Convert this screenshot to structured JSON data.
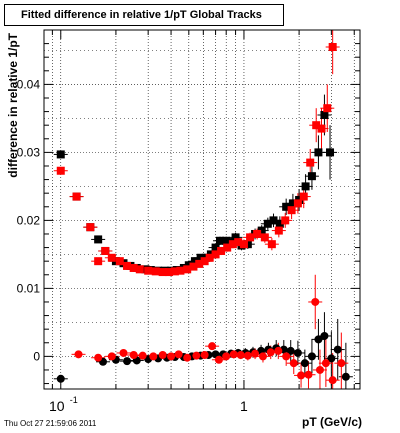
{
  "chart_data": {
    "type": "scatter",
    "title": "Fitted difference in relative 1/pT  Global Tracks",
    "xlabel": "pT (GeV/c)",
    "ylabel": "difference in relative 1/pT",
    "xscale": "log",
    "xlim": [
      0.081,
      4.3
    ],
    "ylim": [
      -0.0048,
      0.048
    ],
    "grid": true,
    "x_tick_labels": [
      {
        "value": 0.1,
        "label": "10",
        "exponent": "-1"
      },
      {
        "value": 1,
        "label": "1",
        "exponent": ""
      }
    ],
    "y_ticks": [
      {
        "value": 0,
        "label": "0"
      },
      {
        "value": 0.01,
        "label": "0.01"
      },
      {
        "value": 0.02,
        "label": "0.02"
      },
      {
        "value": 0.03,
        "label": "0.03"
      },
      {
        "value": 0.04,
        "label": "0.04"
      }
    ],
    "series": [
      {
        "color": "#000000",
        "marker": "square",
        "points": [
          [
            0.1,
            0.0297,
            0.0005
          ],
          [
            0.122,
            0.0235,
            0.0004
          ],
          [
            0.145,
            0.019,
            0.0004
          ],
          [
            0.16,
            0.0172,
            0.0004
          ],
          [
            0.175,
            0.0155,
            0.0004
          ],
          [
            0.2,
            0.014,
            0.0004
          ],
          [
            0.22,
            0.0137,
            0.0004
          ],
          [
            0.24,
            0.0133,
            0.0004
          ],
          [
            0.26,
            0.013,
            0.0004
          ],
          [
            0.29,
            0.0128,
            0.0004
          ],
          [
            0.31,
            0.0127,
            0.0004
          ],
          [
            0.34,
            0.0126,
            0.0004
          ],
          [
            0.37,
            0.0126,
            0.0004
          ],
          [
            0.4,
            0.0126,
            0.0004
          ],
          [
            0.43,
            0.0127,
            0.0004
          ],
          [
            0.47,
            0.013,
            0.0005
          ],
          [
            0.5,
            0.0134,
            0.0005
          ],
          [
            0.54,
            0.014,
            0.0005
          ],
          [
            0.58,
            0.0145,
            0.0005
          ],
          [
            0.62,
            0.0145,
            0.0005
          ],
          [
            0.66,
            0.015,
            0.0005
          ],
          [
            0.7,
            0.016,
            0.0005
          ],
          [
            0.74,
            0.017,
            0.0006
          ],
          [
            0.8,
            0.017,
            0.0006
          ],
          [
            0.85,
            0.0168,
            0.0006
          ],
          [
            0.9,
            0.0175,
            0.0007
          ],
          [
            0.97,
            0.0163,
            0.0007
          ],
          [
            1.05,
            0.0165,
            0.0007
          ],
          [
            1.15,
            0.018,
            0.0008
          ],
          [
            1.25,
            0.0185,
            0.0008
          ],
          [
            1.35,
            0.0195,
            0.0009
          ],
          [
            1.45,
            0.02,
            0.001
          ],
          [
            1.57,
            0.0195,
            0.0011
          ],
          [
            1.7,
            0.022,
            0.0012
          ],
          [
            1.85,
            0.0225,
            0.0014
          ],
          [
            2.0,
            0.023,
            0.0016
          ],
          [
            2.17,
            0.025,
            0.0018
          ],
          [
            2.35,
            0.0265,
            0.002
          ],
          [
            2.55,
            0.03,
            0.0025
          ],
          [
            2.75,
            0.0355,
            0.003
          ],
          [
            2.95,
            0.03,
            0.004
          ]
        ]
      },
      {
        "color": "#ff0000",
        "marker": "square",
        "points": [
          [
            0.1,
            0.0273,
            0.0005
          ],
          [
            0.122,
            0.0235,
            0.0004
          ],
          [
            0.145,
            0.019,
            0.0004
          ],
          [
            0.16,
            0.014,
            0.0004
          ],
          [
            0.175,
            0.0155,
            0.0004
          ],
          [
            0.19,
            0.0145,
            0.0004
          ],
          [
            0.21,
            0.014,
            0.0004
          ],
          [
            0.23,
            0.0133,
            0.0004
          ],
          [
            0.25,
            0.013,
            0.0004
          ],
          [
            0.27,
            0.0128,
            0.0004
          ],
          [
            0.3,
            0.0126,
            0.0004
          ],
          [
            0.33,
            0.0125,
            0.0004
          ],
          [
            0.36,
            0.0124,
            0.0004
          ],
          [
            0.39,
            0.0124,
            0.0004
          ],
          [
            0.42,
            0.0125,
            0.0004
          ],
          [
            0.45,
            0.0126,
            0.0005
          ],
          [
            0.49,
            0.0128,
            0.0005
          ],
          [
            0.53,
            0.0132,
            0.0005
          ],
          [
            0.57,
            0.0136,
            0.0005
          ],
          [
            0.61,
            0.014,
            0.0005
          ],
          [
            0.65,
            0.0145,
            0.0005
          ],
          [
            0.7,
            0.015,
            0.0005
          ],
          [
            0.75,
            0.0155,
            0.0006
          ],
          [
            0.81,
            0.016,
            0.0006
          ],
          [
            0.87,
            0.0165,
            0.0006
          ],
          [
            0.93,
            0.0168,
            0.0007
          ],
          [
            1.0,
            0.0165,
            0.0007
          ],
          [
            1.08,
            0.0175,
            0.0007
          ],
          [
            1.18,
            0.018,
            0.0008
          ],
          [
            1.3,
            0.0175,
            0.0008
          ],
          [
            1.42,
            0.0165,
            0.0009
          ],
          [
            1.55,
            0.0185,
            0.001
          ],
          [
            1.68,
            0.02,
            0.0011
          ],
          [
            1.82,
            0.0215,
            0.0013
          ],
          [
            1.97,
            0.0225,
            0.0015
          ],
          [
            2.12,
            0.0235,
            0.0017
          ],
          [
            2.3,
            0.0285,
            0.002
          ],
          [
            2.48,
            0.034,
            0.0025
          ],
          [
            2.65,
            0.0335,
            0.003
          ],
          [
            2.85,
            0.0365,
            0.0035
          ],
          [
            3.05,
            0.0455,
            0.004
          ]
        ]
      },
      {
        "color": "#000000",
        "marker": "circle",
        "points": [
          [
            0.1,
            -0.0033,
            0.0004
          ],
          [
            0.17,
            -0.0008,
            0.0003
          ],
          [
            0.2,
            -0.0005,
            0.0003
          ],
          [
            0.23,
            -0.0007,
            0.0003
          ],
          [
            0.26,
            -0.0006,
            0.0003
          ],
          [
            0.3,
            -0.0004,
            0.0003
          ],
          [
            0.34,
            -0.0003,
            0.0003
          ],
          [
            0.38,
            -0.0002,
            0.0003
          ],
          [
            0.42,
            -0.0001,
            0.0003
          ],
          [
            0.47,
            -0.0001,
            0.0004
          ],
          [
            0.52,
            0.0,
            0.0004
          ],
          [
            0.58,
            0.0001,
            0.0004
          ],
          [
            0.64,
            0.0002,
            0.0004
          ],
          [
            0.7,
            0.0003,
            0.0005
          ],
          [
            0.77,
            0.0003,
            0.0005
          ],
          [
            0.85,
            0.0004,
            0.0006
          ],
          [
            0.93,
            0.0005,
            0.0006
          ],
          [
            1.02,
            0.0005,
            0.0007
          ],
          [
            1.12,
            0.0006,
            0.0008
          ],
          [
            1.24,
            0.0008,
            0.0009
          ],
          [
            1.36,
            0.001,
            0.001
          ],
          [
            1.5,
            0.0012,
            0.0012
          ],
          [
            1.65,
            0.001,
            0.0014
          ],
          [
            1.8,
            0.0008,
            0.0016
          ],
          [
            1.97,
            0.0005,
            0.0018
          ],
          [
            2.15,
            -0.001,
            0.002
          ],
          [
            2.35,
            0.0,
            0.0025
          ],
          [
            2.55,
            0.0025,
            0.003
          ],
          [
            2.75,
            0.003,
            0.0035
          ],
          [
            3.0,
            -0.0003,
            0.004
          ],
          [
            3.25,
            0.001,
            0.0045
          ],
          [
            3.6,
            -0.003,
            0.005
          ]
        ]
      },
      {
        "color": "#ff0000",
        "marker": "circle",
        "points": [
          [
            0.125,
            0.0003,
            0.0003
          ],
          [
            0.16,
            -0.0002,
            0.0003
          ],
          [
            0.19,
            0.0,
            0.0003
          ],
          [
            0.22,
            0.0005,
            0.0003
          ],
          [
            0.25,
            0.0002,
            0.0003
          ],
          [
            0.28,
            0.0001,
            0.0003
          ],
          [
            0.32,
            0.0,
            0.0003
          ],
          [
            0.36,
            0.0002,
            0.0003
          ],
          [
            0.4,
            0.0,
            0.0003
          ],
          [
            0.44,
            0.0003,
            0.0004
          ],
          [
            0.49,
            -0.0002,
            0.0004
          ],
          [
            0.55,
            0.0001,
            0.0004
          ],
          [
            0.61,
            0.0002,
            0.0004
          ],
          [
            0.67,
            0.0015,
            0.0005
          ],
          [
            0.73,
            -0.0005,
            0.0005
          ],
          [
            0.8,
            0.0,
            0.0005
          ],
          [
            0.88,
            0.0003,
            0.0006
          ],
          [
            0.96,
            0.0002,
            0.0006
          ],
          [
            1.05,
            0.0001,
            0.0007
          ],
          [
            1.15,
            0.0004,
            0.0008
          ],
          [
            1.27,
            0.0,
            0.0009
          ],
          [
            1.4,
            0.0006,
            0.001
          ],
          [
            1.54,
            0.0008,
            0.0012
          ],
          [
            1.7,
            0.0,
            0.0014
          ],
          [
            1.87,
            -0.001,
            0.0016
          ],
          [
            2.05,
            -0.0028,
            0.0018
          ],
          [
            2.25,
            -0.0027,
            0.002
          ],
          [
            2.45,
            0.008,
            0.004
          ],
          [
            2.6,
            -0.002,
            0.003
          ],
          [
            2.8,
            -0.001,
            0.0035
          ],
          [
            3.05,
            -0.0035,
            0.004
          ],
          [
            3.4,
            -0.001,
            0.0045
          ]
        ]
      }
    ]
  },
  "footer": {
    "timestamp": "Thu Oct 27 21:59:06 2011"
  }
}
